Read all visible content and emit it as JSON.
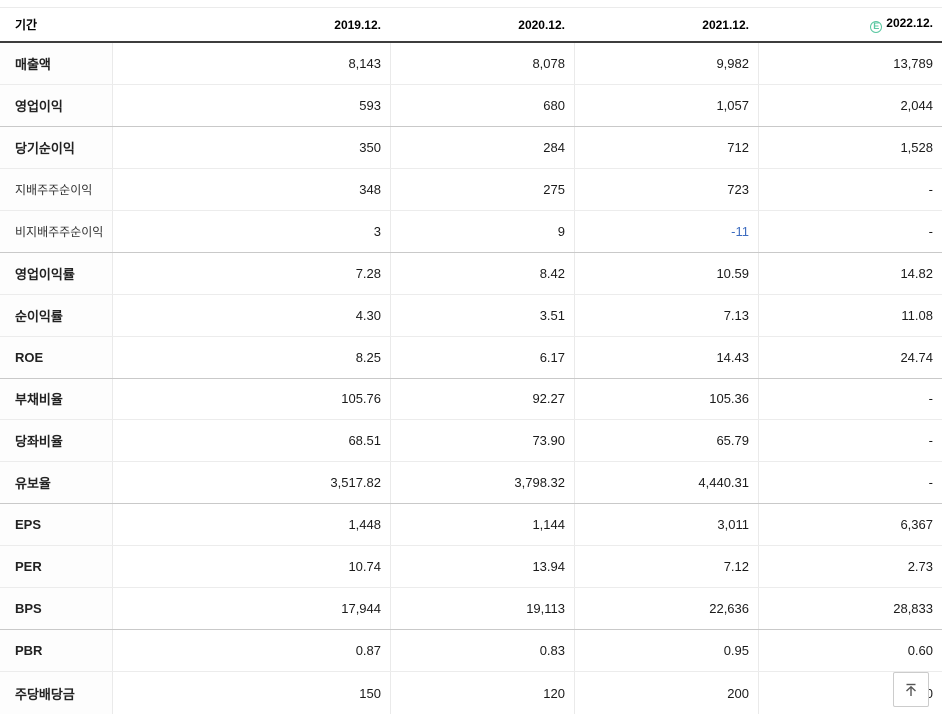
{
  "colors": {
    "estimate_green": "#5bc8a2",
    "negative_blue": "#3e6dc0",
    "header_rule_dark": "#3d3d3d"
  },
  "table": {
    "header": {
      "period_label": "기간",
      "estimate_symbol": "E",
      "columns": [
        {
          "label": "2019.12.",
          "estimate": false
        },
        {
          "label": "2020.12.",
          "estimate": false
        },
        {
          "label": "2021.12.",
          "estimate": false
        },
        {
          "label": "2022.12.",
          "estimate": true
        }
      ]
    },
    "rows": [
      {
        "label": "매출액",
        "type": "main",
        "group_end": false,
        "values": [
          "8,143",
          "8,078",
          "9,982",
          "13,789"
        ]
      },
      {
        "label": "영업이익",
        "type": "main",
        "group_end": true,
        "values": [
          "593",
          "680",
          "1,057",
          "2,044"
        ]
      },
      {
        "label": "당기순이익",
        "type": "main",
        "group_end": false,
        "values": [
          "350",
          "284",
          "712",
          "1,528"
        ]
      },
      {
        "label": "지배주주순이익",
        "type": "sub",
        "group_end": false,
        "values": [
          "348",
          "275",
          "723",
          "-"
        ]
      },
      {
        "label": "비지배주주순이익",
        "type": "sub",
        "group_end": true,
        "values": [
          "3",
          "9",
          "-11",
          "-"
        ]
      },
      {
        "label": "영업이익률",
        "type": "main",
        "group_end": false,
        "values": [
          "7.28",
          "8.42",
          "10.59",
          "14.82"
        ]
      },
      {
        "label": "순이익률",
        "type": "main",
        "group_end": false,
        "values": [
          "4.30",
          "3.51",
          "7.13",
          "11.08"
        ]
      },
      {
        "label": "ROE",
        "type": "main",
        "group_end": true,
        "values": [
          "8.25",
          "6.17",
          "14.43",
          "24.74"
        ]
      },
      {
        "label": "부채비율",
        "type": "main",
        "group_end": false,
        "values": [
          "105.76",
          "92.27",
          "105.36",
          "-"
        ]
      },
      {
        "label": "당좌비율",
        "type": "main",
        "group_end": false,
        "values": [
          "68.51",
          "73.90",
          "65.79",
          "-"
        ]
      },
      {
        "label": "유보율",
        "type": "main",
        "group_end": true,
        "values": [
          "3,517.82",
          "3,798.32",
          "4,440.31",
          "-"
        ]
      },
      {
        "label": "EPS",
        "type": "main",
        "group_end": false,
        "values": [
          "1,448",
          "1,144",
          "3,011",
          "6,367"
        ]
      },
      {
        "label": "PER",
        "type": "main",
        "group_end": false,
        "values": [
          "10.74",
          "13.94",
          "7.12",
          "2.73"
        ]
      },
      {
        "label": "BPS",
        "type": "main",
        "group_end": true,
        "values": [
          "17,944",
          "19,113",
          "22,636",
          "28,833"
        ]
      },
      {
        "label": "PBR",
        "type": "main",
        "group_end": false,
        "values": [
          "0.87",
          "0.83",
          "0.95",
          "0.60"
        ]
      },
      {
        "label": "주당배당금",
        "type": "main",
        "group_end": false,
        "values": [
          "150",
          "120",
          "200",
          "0"
        ]
      }
    ]
  },
  "scroll_top": {
    "icon": "arrow-up-to-top"
  }
}
